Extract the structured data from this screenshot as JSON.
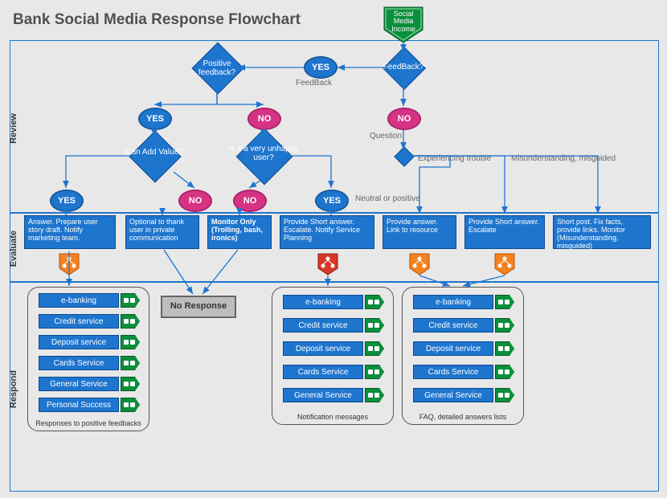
{
  "title": "Bank Social Media Response Flowchart",
  "sections": {
    "review": "Review",
    "evaluate": "Evaluate",
    "respond": "Respond"
  },
  "colors": {
    "bg": "#e8e8e8",
    "blue": "#1e75ce",
    "blue_dark": "#0a4a90",
    "pink": "#d63384",
    "green": "#0a8f3c",
    "red": "#d9362a",
    "orange": "#f58220",
    "grey": "#bdbdbd"
  },
  "start_node": "Social Media Income",
  "diamonds": {
    "feedback": "FeedBack?",
    "positive": "Positive feedback?",
    "addvalue": "Can Add Value?",
    "unhappy": "Is it a very unhappy user?"
  },
  "pills": {
    "yes": "YES",
    "no": "NO"
  },
  "notes": {
    "feedback": "FeedBack",
    "question": "Question",
    "trouble": "Experiencing trouble",
    "misguided": "Misunderstanding, misguided",
    "neutral": "Neutral or positive"
  },
  "evaluate_boxes": {
    "a": "Answer.\nPrepare user story draft.\nNotify marketing team.",
    "b": "Optional to thank user in private communication",
    "c": "Monitor Only\n(Trolling, bash, ironics)",
    "d": "Provide Short answer.\nEscalate.\nNotify Service Planning",
    "e": "Provide answer.\nLink to resource",
    "f": "Provide Short answer.\nEscalate",
    "g": "Short post. Fix facts, provide links.\nMonitor (Misunderstanding, misguided)"
  },
  "no_response": "No Response",
  "respond_groups": {
    "g1": {
      "caption": "Responses to positive feedbacks",
      "items": [
        "e-banking",
        "Credit service",
        "Deposit service",
        "Cards Service",
        "General Service",
        "Personal Success"
      ]
    },
    "g2": {
      "caption": "Notification messages",
      "items": [
        "e-banking",
        "Credit service",
        "Deposit service",
        "Cards Service",
        "General Service"
      ]
    },
    "g3": {
      "caption": "FAQ, detailed answers lists",
      "items": [
        "e-banking",
        "Credit service",
        "Deposit service",
        "Cards Service",
        "General Service"
      ]
    }
  }
}
